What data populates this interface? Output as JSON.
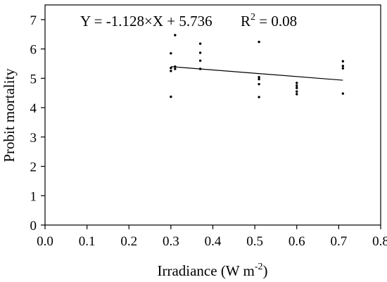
{
  "chart_data": {
    "type": "scatter",
    "xlabel": "Irradiance (W m",
    "xlabel_sup": "-2",
    "xlabel_close": ")",
    "ylabel": "Probit mortality",
    "xlim": [
      0.0,
      0.8
    ],
    "ylim": [
      0,
      7.5
    ],
    "x_ticks": [
      0.0,
      0.1,
      0.2,
      0.3,
      0.4,
      0.5,
      0.6,
      0.7,
      0.8
    ],
    "x_tick_labels": [
      "0.0",
      "0.1",
      "0.2",
      "0.3",
      "0.4",
      "0.5",
      "0.6",
      "0.7",
      "0.8"
    ],
    "y_ticks": [
      0,
      1,
      2,
      3,
      4,
      5,
      6,
      7
    ],
    "y_tick_labels": [
      "0",
      "1",
      "2",
      "3",
      "4",
      "5",
      "6",
      "7"
    ],
    "grid": false,
    "equation": "Y = -1.128×X + 5.736",
    "r2_prefix": "R",
    "r2_sup": "2",
    "r2_value": " = 0.08",
    "points": [
      {
        "x": 0.3,
        "y": 5.85
      },
      {
        "x": 0.3,
        "y": 5.35
      },
      {
        "x": 0.3,
        "y": 5.25
      },
      {
        "x": 0.3,
        "y": 4.37
      },
      {
        "x": 0.31,
        "y": 6.47
      },
      {
        "x": 0.31,
        "y": 5.4
      },
      {
        "x": 0.31,
        "y": 5.32
      },
      {
        "x": 0.37,
        "y": 6.18
      },
      {
        "x": 0.37,
        "y": 5.87
      },
      {
        "x": 0.37,
        "y": 5.6
      },
      {
        "x": 0.37,
        "y": 5.32
      },
      {
        "x": 0.51,
        "y": 6.24
      },
      {
        "x": 0.51,
        "y": 5.04
      },
      {
        "x": 0.51,
        "y": 4.97
      },
      {
        "x": 0.51,
        "y": 4.8
      },
      {
        "x": 0.51,
        "y": 4.36
      },
      {
        "x": 0.6,
        "y": 4.84
      },
      {
        "x": 0.6,
        "y": 4.75
      },
      {
        "x": 0.6,
        "y": 4.67
      },
      {
        "x": 0.6,
        "y": 4.55
      },
      {
        "x": 0.6,
        "y": 4.46
      },
      {
        "x": 0.71,
        "y": 5.58
      },
      {
        "x": 0.71,
        "y": 5.42
      },
      {
        "x": 0.71,
        "y": 5.34
      },
      {
        "x": 0.71,
        "y": 4.48
      }
    ],
    "fit_line": {
      "slope": -1.128,
      "intercept": 5.736,
      "x_range": [
        0.3,
        0.71
      ]
    }
  }
}
